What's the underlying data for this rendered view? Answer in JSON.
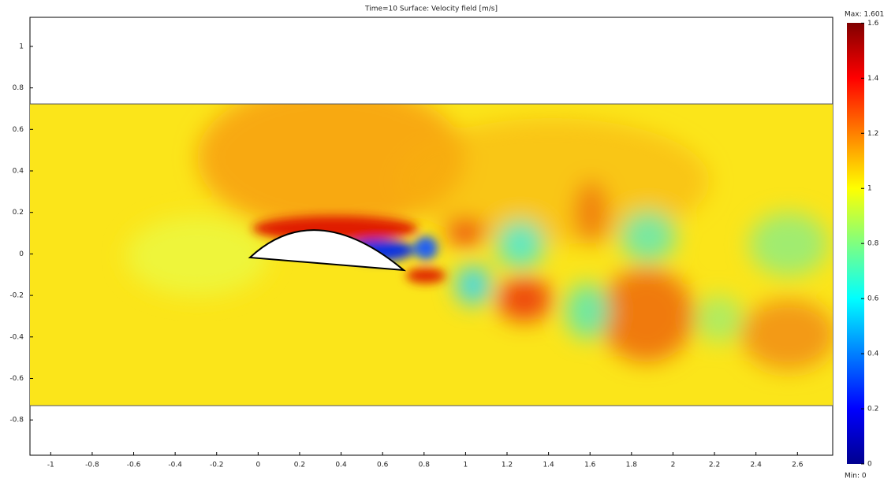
{
  "chart_data": {
    "type": "surface",
    "title": "Time=10   Surface: Velocity field [m/s]",
    "xlim": [
      -1.1,
      2.77
    ],
    "ylim": [
      -0.97,
      1.14
    ],
    "xticks": [
      -1,
      -0.8,
      -0.6,
      -0.4,
      -0.2,
      0,
      0.2,
      0.4,
      0.6,
      0.8,
      1,
      1.2,
      1.4,
      1.6,
      1.8,
      2,
      2.2,
      2.4,
      2.6
    ],
    "yticks": [
      -0.8,
      -0.6,
      -0.4,
      -0.2,
      0,
      0.2,
      0.4,
      0.6,
      0.8,
      1
    ],
    "colorbar": {
      "clim": [
        0,
        1.601
      ],
      "ticks": [
        0,
        0.2,
        0.4,
        0.6,
        0.8,
        1,
        1.2,
        1.4,
        1.6
      ],
      "max_label": "Max: 1.601",
      "min_label": "Min: 0",
      "colormap": "jet"
    }
  }
}
